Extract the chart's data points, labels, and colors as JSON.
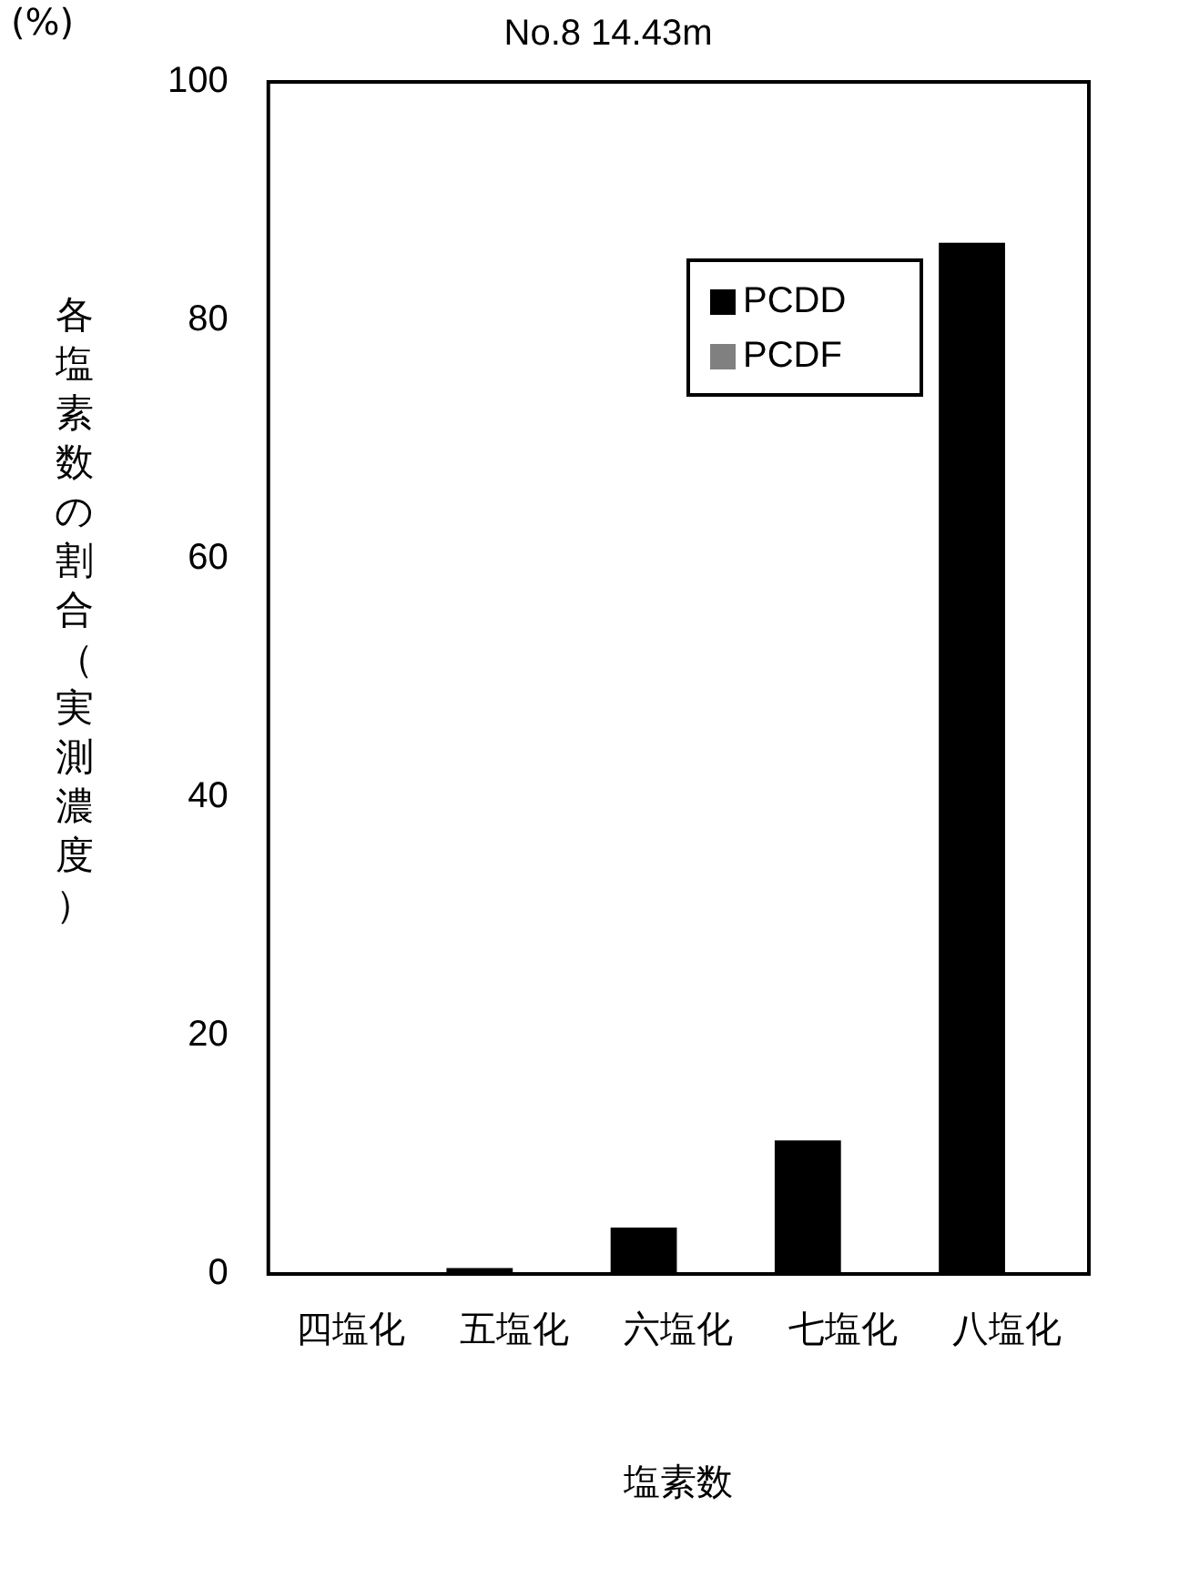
{
  "chart_data": {
    "type": "bar",
    "title": "No.8 14.43m",
    "xlabel": "塩素数",
    "ylabel": "各塩素数の割合（実測濃度）",
    "annotations": [
      "(%)"
    ],
    "categories": [
      "四塩化",
      "五塩化",
      "六塩化",
      "七塩化",
      "八塩化"
    ],
    "series": [
      {
        "name": "PCDD",
        "color": "#000000",
        "values": [
          0,
          0.5,
          3.9,
          11.2,
          86.5
        ]
      },
      {
        "name": "PCDF",
        "color": "#808080",
        "values": [
          0,
          0,
          0,
          0,
          0
        ]
      }
    ],
    "ylim": [
      0,
      100
    ],
    "yticks": [
      0,
      20,
      40,
      60,
      80,
      100
    ],
    "grid": false,
    "legend": "top right"
  }
}
